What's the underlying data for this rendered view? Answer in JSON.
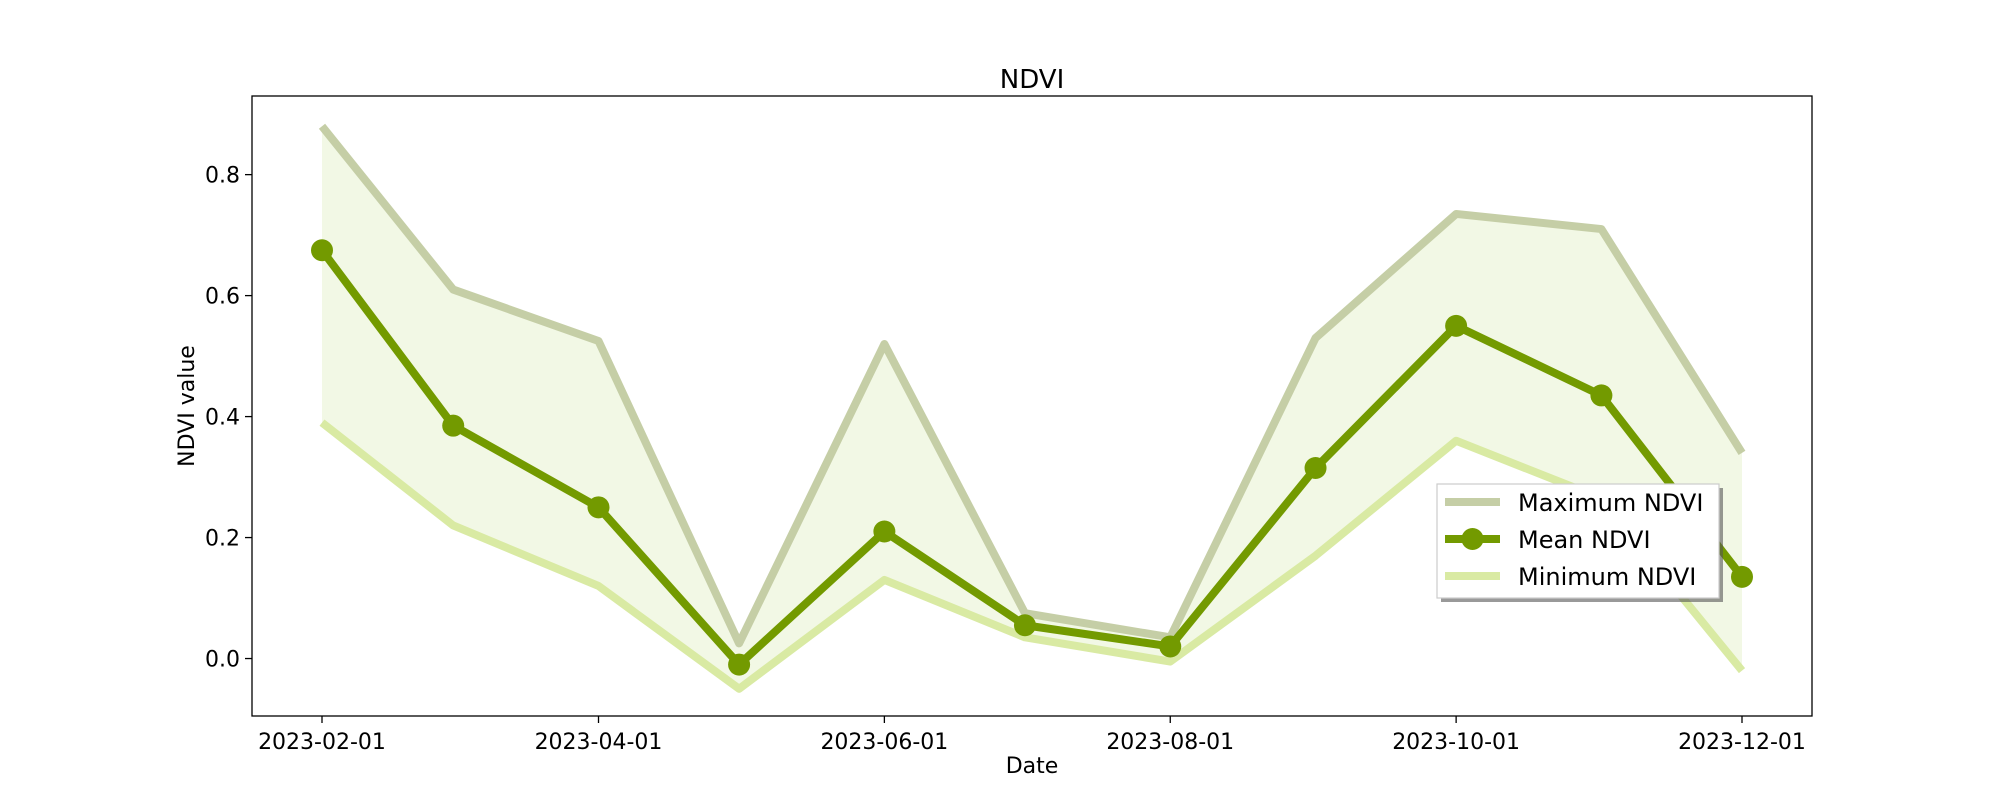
{
  "chart_data": {
    "type": "line",
    "title": "NDVI",
    "xlabel": "Date",
    "ylabel": "NDVI value",
    "x": [
      "2023-02-01",
      "2023-03-01",
      "2023-04-01",
      "2023-05-01",
      "2023-06-01",
      "2023-07-01",
      "2023-08-01",
      "2023-09-01",
      "2023-10-01",
      "2023-11-01",
      "2023-12-01"
    ],
    "x_ticks": [
      "2023-02-01",
      "2023-04-01",
      "2023-06-01",
      "2023-08-01",
      "2023-10-01",
      "2023-12-01"
    ],
    "y_ticks": [
      "0.0",
      "0.2",
      "0.4",
      "0.6",
      "0.8"
    ],
    "ylim": [
      -0.095,
      0.93
    ],
    "grid": false,
    "legend_position": "center-right",
    "series": [
      {
        "name": "Maximum NDVI",
        "color": "#c5cea6",
        "values": [
          0.88,
          0.61,
          0.525,
          0.025,
          0.52,
          0.075,
          0.035,
          0.53,
          0.735,
          0.71,
          0.34
        ]
      },
      {
        "name": "Mean NDVI",
        "color": "#739a00",
        "marker": "circle",
        "values": [
          0.675,
          0.385,
          0.25,
          -0.01,
          0.21,
          0.055,
          0.02,
          0.315,
          0.55,
          0.435,
          0.135
        ]
      },
      {
        "name": "Minimum NDVI",
        "color": "#d9eaa3",
        "values": [
          0.39,
          0.22,
          0.12,
          -0.05,
          0.13,
          0.035,
          -0.005,
          0.17,
          0.36,
          0.265,
          -0.02
        ]
      }
    ],
    "fill_between": {
      "upper": "Maximum NDVI",
      "lower": "Minimum NDVI",
      "color": "#f2f8e5"
    }
  }
}
